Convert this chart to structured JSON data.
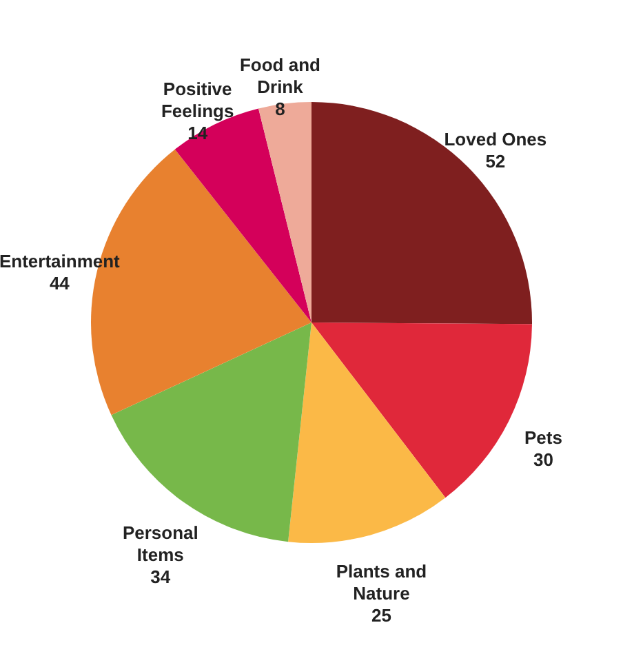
{
  "chart_data": {
    "type": "pie",
    "categories": [
      "Loved Ones",
      "Pets",
      "Plants and Nature",
      "Personal Items",
      "Entertainment",
      "Positive Feelings",
      "Food and Drink"
    ],
    "values": [
      52,
      30,
      25,
      34,
      44,
      14,
      8
    ],
    "colors": [
      "#7f1f1f",
      "#e0283a",
      "#fbb947",
      "#77b84a",
      "#e8812f",
      "#d4005a",
      "#eeaa99"
    ],
    "data_labels": true
  }
}
